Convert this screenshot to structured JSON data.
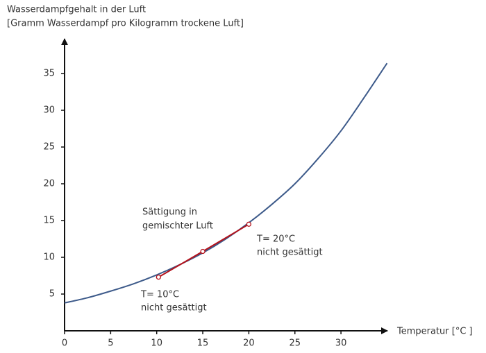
{
  "chart_data": {
    "type": "line",
    "y_label_lines": [
      "Wasserdampfgehalt in der Luft",
      "[Gramm Wasserdampf pro Kilogramm trockene Luft]"
    ],
    "x_label": "Temperatur [°C ]",
    "xlim": [
      0,
      35
    ],
    "ylim": [
      0,
      40
    ],
    "xticks": [
      0,
      5,
      10,
      15,
      20,
      25,
      30
    ],
    "yticks": [
      5,
      10,
      15,
      20,
      25,
      30,
      35
    ],
    "series": [
      {
        "color": "#3d5a8a",
        "x": [
          0,
          2.5,
          5,
          7.5,
          10,
          12.5,
          15,
          17.5,
          20,
          22.5,
          25,
          27.5,
          30,
          32.5,
          35
        ],
        "values": [
          3.8,
          4.5,
          5.4,
          6.4,
          7.6,
          9.0,
          10.6,
          12.5,
          14.7,
          17.2,
          20.0,
          23.4,
          27.2,
          31.7,
          36.4
        ]
      },
      {
        "color": "#b5121b",
        "x": [
          10.2,
          15,
          20
        ],
        "values": [
          7.3,
          10.8,
          14.5
        ],
        "markers": true
      }
    ],
    "annotations": [
      {
        "lines": [
          "Sättigung in",
          "gemischter Luft"
        ]
      },
      {
        "lines": [
          "T= 20°C",
          "nicht gesättigt"
        ]
      },
      {
        "lines": [
          "T= 10°C",
          "nicht gesättigt"
        ]
      }
    ]
  }
}
